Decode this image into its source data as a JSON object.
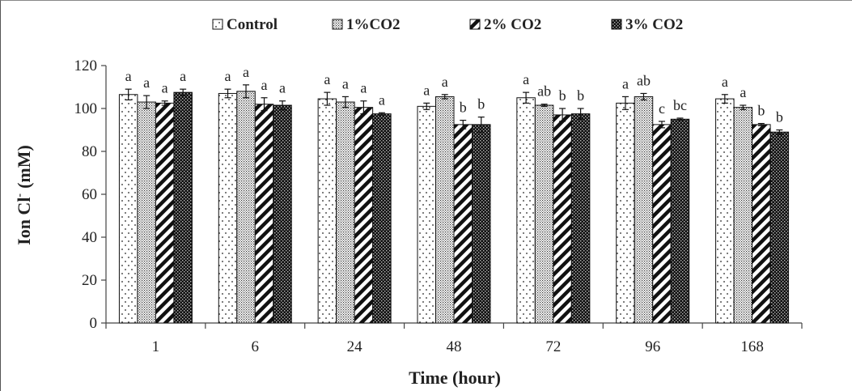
{
  "chart_data": {
    "type": "bar",
    "xlabel": "Time (hour)",
    "ylabel_main": "Ion Cl",
    "ylabel_sup": "-",
    "ylabel_unit": "(mM)",
    "ylim": [
      0,
      120
    ],
    "yticks": [
      0,
      20,
      40,
      60,
      80,
      100,
      120
    ],
    "categories": [
      "1",
      "6",
      "24",
      "48",
      "72",
      "96",
      "168"
    ],
    "legend_position": "top",
    "grid": false,
    "series": [
      {
        "name": "Control",
        "pattern": "dots",
        "values": [
          106.5,
          107.0,
          104.5,
          101.0,
          105.0,
          102.5,
          104.5
        ],
        "errors": [
          2.5,
          2.0,
          3.0,
          1.5,
          2.5,
          3.0,
          2.0
        ],
        "labels": [
          "a",
          "a",
          "a",
          "a",
          "a",
          "a",
          "a"
        ]
      },
      {
        "name": "1%CO2",
        "pattern": "fine",
        "values": [
          103.0,
          108.0,
          103.0,
          105.5,
          101.5,
          105.5,
          100.5
        ],
        "errors": [
          3.0,
          3.0,
          2.5,
          1.0,
          0.5,
          1.5,
          1.0
        ],
        "labels": [
          "a",
          "a",
          "a",
          "a",
          "ab",
          "ab",
          "a"
        ]
      },
      {
        "name": "2% CO2",
        "pattern": "diagonal",
        "values": [
          102.5,
          102.0,
          100.5,
          92.5,
          97.0,
          92.5,
          92.5
        ],
        "errors": [
          1.0,
          3.0,
          3.0,
          2.0,
          3.0,
          1.5,
          0.5
        ],
        "labels": [
          "a",
          "a",
          "a",
          "b",
          "b",
          "c",
          "b"
        ]
      },
      {
        "name": "3% CO2",
        "pattern": "checker",
        "values": [
          107.5,
          101.5,
          97.5,
          92.5,
          97.5,
          95.0,
          89.0
        ],
        "errors": [
          1.5,
          2.0,
          0.5,
          3.5,
          2.5,
          0.5,
          1.0
        ],
        "labels": [
          "a",
          "a",
          "a",
          "b",
          "b",
          "bc",
          "b"
        ]
      }
    ]
  }
}
